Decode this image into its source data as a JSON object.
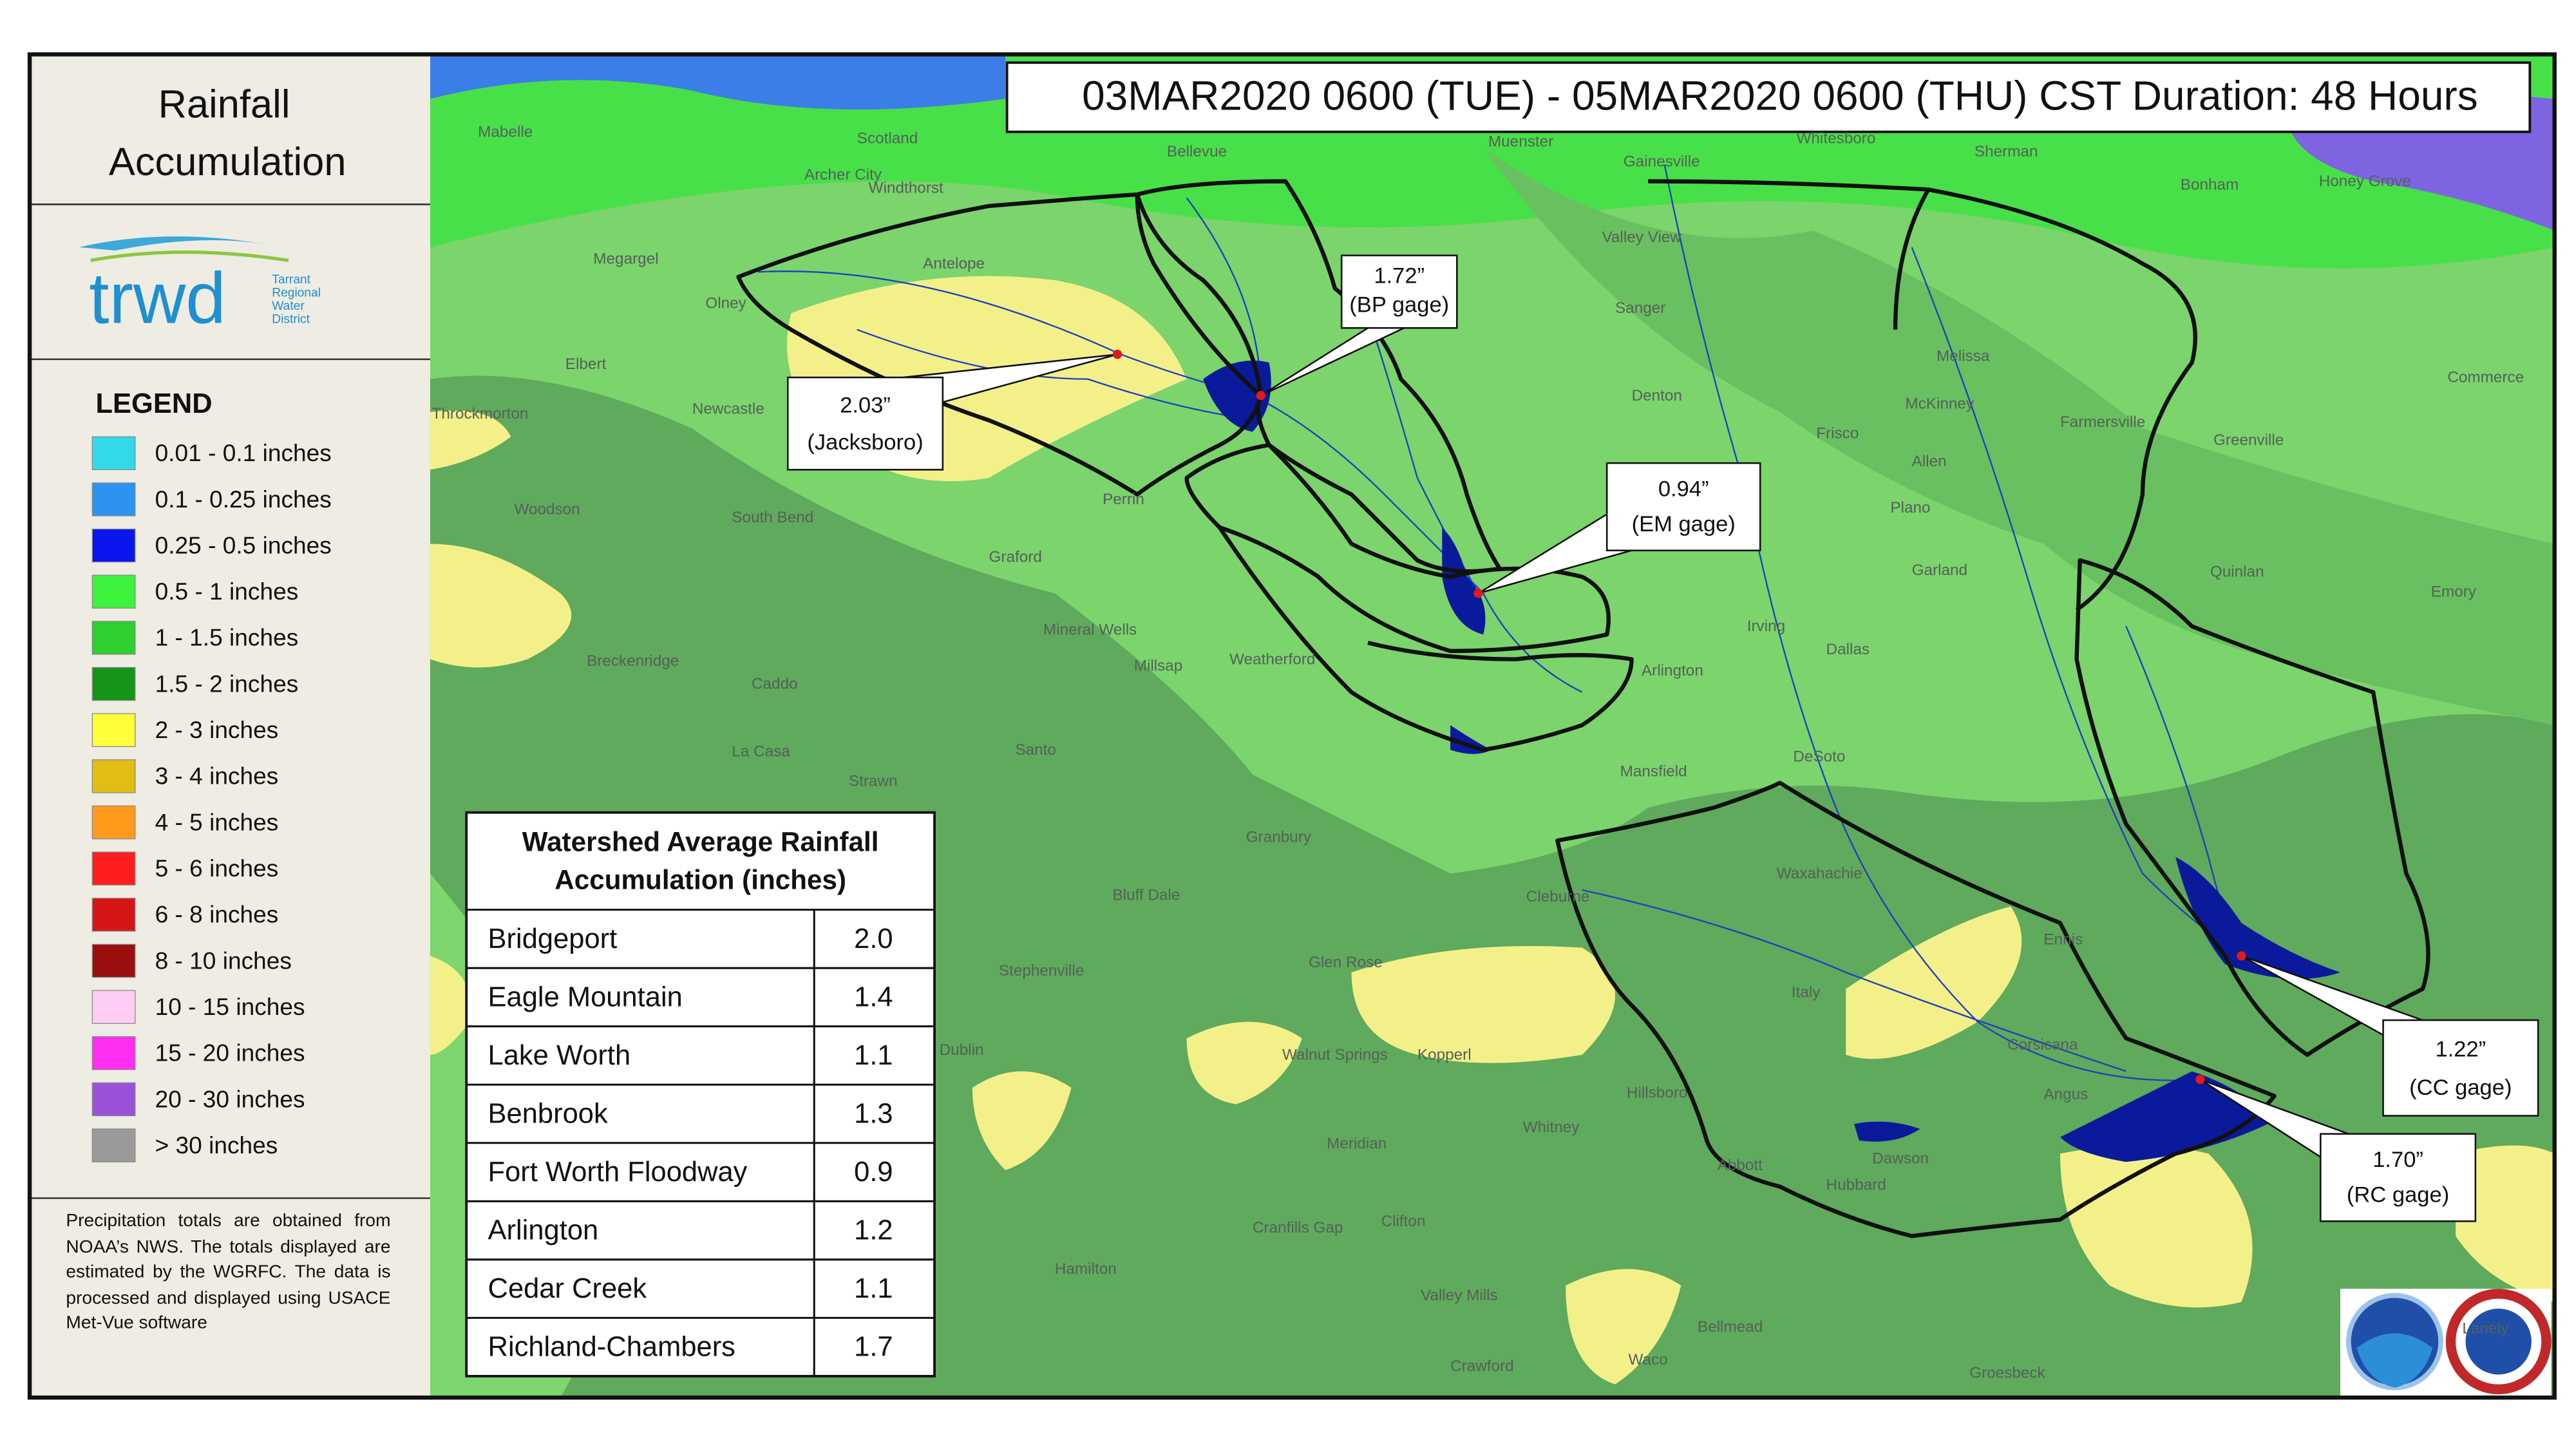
{
  "title_lines": [
    "Rainfall",
    "Accumulation"
  ],
  "logo": {
    "name": "trwd",
    "full_name": [
      "Tarrant",
      "Regional",
      "Water",
      "District"
    ]
  },
  "date_range": "03MAR2020 0600 (TUE) - 05MAR2020 0600 (THU) CST Duration: 48 Hours",
  "legend": {
    "title": "LEGEND",
    "items": [
      {
        "label": "0.01 - 0.1 inches",
        "color": "#33d8ea"
      },
      {
        "label": "0.1 - 0.25 inches",
        "color": "#2a94f0"
      },
      {
        "label": "0.25 - 0.5 inches",
        "color": "#0a16ee"
      },
      {
        "label": "0.5 - 1 inches",
        "color": "#3cf23c"
      },
      {
        "label": "1 - 1.5 inches",
        "color": "#2fcf2f"
      },
      {
        "label": "1.5 - 2 inches",
        "color": "#14951a"
      },
      {
        "label": "2 - 3 inches",
        "color": "#ffff3a"
      },
      {
        "label": "3 - 4 inches",
        "color": "#e2bd12"
      },
      {
        "label": "4 - 5 inches",
        "color": "#ff9a1c"
      },
      {
        "label": "5 - 6 inches",
        "color": "#ff1e1e"
      },
      {
        "label": "6 - 8 inches",
        "color": "#d61616"
      },
      {
        "label": "8 - 10 inches",
        "color": "#9c0e0e"
      },
      {
        "label": "10 - 15 inches",
        "color": "#ffccf6"
      },
      {
        "label": "15 - 20 inches",
        "color": "#ff2ef0"
      },
      {
        "label": "20 - 30 inches",
        "color": "#9a52d8"
      },
      {
        "label": "> 30 inches",
        "color": "#9a9a9a"
      }
    ]
  },
  "note": "Precipitation totals are obtained from NOAA’s NWS. The totals displayed are estimated by the WGRFC. The data is processed and displayed using USACE Met-Vue software",
  "table": {
    "title_lines": [
      "Watershed Average Rainfall",
      "Accumulation (inches)"
    ],
    "rows": [
      [
        "Bridgeport",
        "2.0"
      ],
      [
        "Eagle Mountain",
        "1.4"
      ],
      [
        "Lake Worth",
        "1.1"
      ],
      [
        "Benbrook",
        "1.3"
      ],
      [
        "Fort Worth Floodway",
        "0.9"
      ],
      [
        "Arlington",
        "1.2"
      ],
      [
        "Cedar Creek",
        "1.1"
      ],
      [
        "Richland-Chambers",
        "1.7"
      ]
    ]
  },
  "gages": [
    {
      "value": "2.03”",
      "name": "(Jacksboro)"
    },
    {
      "value": "1.72”",
      "name": "(BP gage)"
    },
    {
      "value": "0.94”",
      "name": "(EM gage)"
    },
    {
      "value": "1.22”",
      "name": "(CC gage)"
    },
    {
      "value": "1.70”",
      "name": "(RC gage)"
    }
  ],
  "places": [
    "Mabelle",
    "Archer City",
    "Windthorst",
    "Scotland",
    "Bellevue",
    "Muenster",
    "Gainesville",
    "Whitesboro",
    "Sherman",
    "Bonham",
    "Honey Grove",
    "Megargel",
    "Olney",
    "Antelope",
    "Valley View",
    "Sanger",
    "Elbert",
    "Newcastle",
    "Throckmorton",
    "Denton",
    "McKinney",
    "Frisco",
    "Farmersville",
    "Greenville",
    "Woodson",
    "South Bend",
    "Perrin",
    "Plano",
    "Graford",
    "Garland",
    "Quinlan",
    "Emory",
    "Mineral Wells",
    "Irving",
    "Dallas",
    "Breckenridge",
    "Caddo",
    "Millsap",
    "Weatherford",
    "Arlington",
    "La Casa",
    "Santo",
    "Mansfield",
    "DeSoto",
    "Strawn",
    "Granbury",
    "Cleburne",
    "Bluff Dale",
    "Waxahachie",
    "Stephenville",
    "Glen Rose",
    "Italy",
    "Corsicana",
    "Dublin",
    "Walnut Springs",
    "Kopperl",
    "Hillsboro",
    "Whitney",
    "Dawson",
    "Meridian",
    "Hubbard",
    "Hamilton",
    "Cranfills Gap",
    "Clifton",
    "Valley Mills",
    "Bellmead",
    "Waco",
    "Crawford",
    "Groesbeck",
    "Commerce",
    "Melissa",
    "Allen",
    "Ennis",
    "Angus",
    "Abbott",
    "Lanely"
  ]
}
